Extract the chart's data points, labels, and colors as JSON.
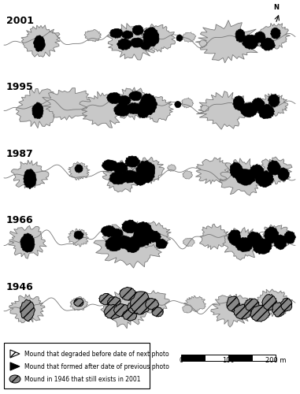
{
  "years": [
    "2001",
    "1995",
    "1987",
    "1966",
    "1946"
  ],
  "background_color": "#ffffff",
  "water_color": "#c8c8c8",
  "palsa_color": "#000000",
  "outline_color": "#777777",
  "legend_items": [
    "Mound that degraded before date of next photo",
    "Mound that formed after date of previous photo",
    "Mound in 1946 that still exists in 2001"
  ],
  "figure_width": 3.81,
  "figure_height": 5.0,
  "dpi": 100,
  "year_label_fontsize": 9,
  "legend_fontsize": 5.5
}
